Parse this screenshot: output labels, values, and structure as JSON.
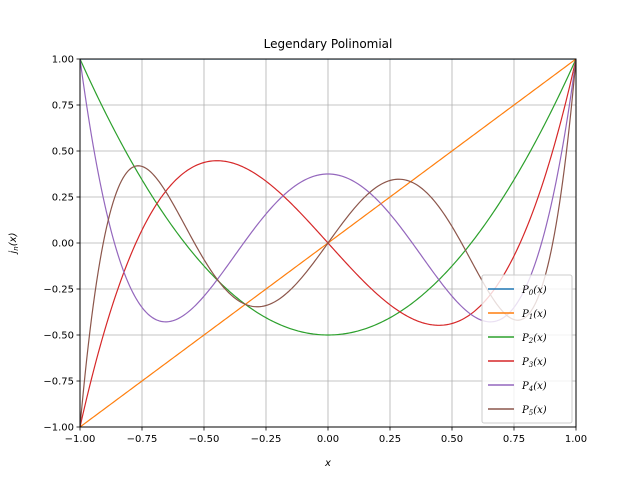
{
  "chart_data": {
    "type": "line",
    "title": "Legendary Polinomial",
    "xlabel": "x",
    "ylabel": "jn(x)",
    "ylabel_main": "j",
    "ylabel_sub": "n",
    "ylabel_rest": "(x)",
    "xlim": [
      -1,
      1
    ],
    "ylim": [
      -1,
      1
    ],
    "xticks": [
      -1.0,
      -0.75,
      -0.5,
      -0.25,
      0.0,
      0.25,
      0.5,
      0.75,
      1.0
    ],
    "yticks": [
      -1.0,
      -0.75,
      -0.5,
      -0.25,
      0.0,
      0.25,
      0.5,
      0.75,
      1.0
    ],
    "xtick_labels": [
      "−1.00",
      "−0.75",
      "−0.50",
      "−0.25",
      "0.00",
      "0.25",
      "0.50",
      "0.75",
      "1.00"
    ],
    "ytick_labels": [
      "−1.00",
      "−0.75",
      "−0.50",
      "−0.25",
      "0.00",
      "0.25",
      "0.50",
      "0.75",
      "1.00"
    ],
    "grid": true,
    "legend_position": "lower-right",
    "series": [
      {
        "name": "P0(x)",
        "label_main": "P",
        "label_sub": "0",
        "label_rest": "(x)",
        "color": "#1f77b4",
        "coefficients": [
          1
        ]
      },
      {
        "name": "P1(x)",
        "label_main": "P",
        "label_sub": "1",
        "label_rest": "(x)",
        "color": "#ff7f0e",
        "coefficients": [
          0,
          1
        ]
      },
      {
        "name": "P2(x)",
        "label_main": "P",
        "label_sub": "2",
        "label_rest": "(x)",
        "color": "#2ca02c",
        "coefficients": [
          -0.5,
          0,
          1.5
        ]
      },
      {
        "name": "P3(x)",
        "label_main": "P",
        "label_sub": "3",
        "label_rest": "(x)",
        "color": "#d62728",
        "coefficients": [
          0,
          -1.5,
          0,
          2.5
        ]
      },
      {
        "name": "P4(x)",
        "label_main": "P",
        "label_sub": "4",
        "label_rest": "(x)",
        "color": "#9467bd",
        "coefficients": [
          0.375,
          0,
          -3.75,
          0,
          4.375
        ]
      },
      {
        "name": "P5(x)",
        "label_main": "P",
        "label_sub": "5",
        "label_rest": "(x)",
        "color": "#8c564b",
        "coefficients": [
          0,
          1.875,
          0,
          -8.75,
          0,
          7.875
        ]
      }
    ]
  }
}
